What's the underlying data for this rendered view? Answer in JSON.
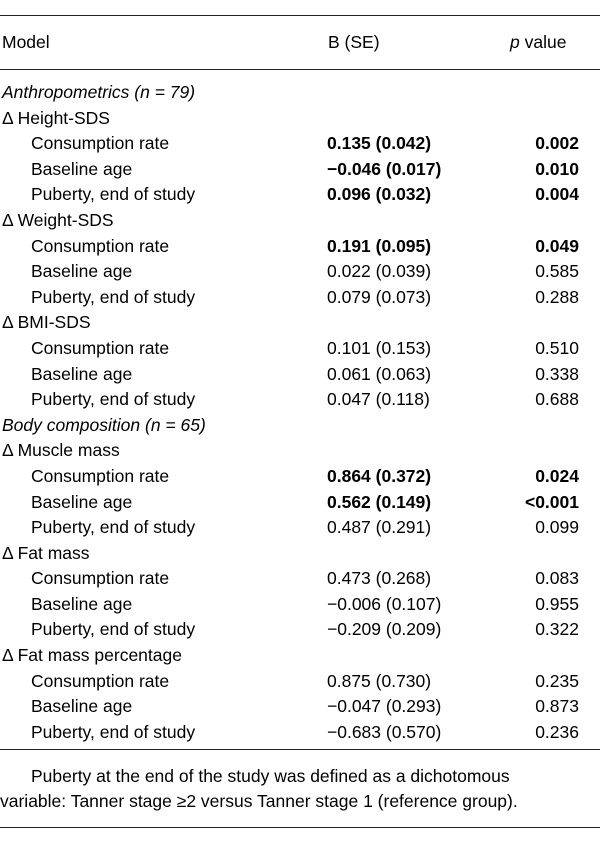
{
  "header": {
    "model": "Model",
    "b_se": "B (SE)",
    "p_italic": "p",
    "p_rest": " value"
  },
  "rows": [
    {
      "kind": "section",
      "label": "Anthropometrics (n = 79)"
    },
    {
      "kind": "group",
      "label": "Δ Height-SDS"
    },
    {
      "kind": "item",
      "label": "Consumption rate",
      "b": "0.135 (0.042)",
      "p": "0.002",
      "bold": true
    },
    {
      "kind": "item",
      "label": "Baseline age",
      "b": "−0.046 (0.017)",
      "p": "0.010",
      "bold": true
    },
    {
      "kind": "item",
      "label": "Puberty, end of study",
      "b": "0.096 (0.032)",
      "p": "0.004",
      "bold": true
    },
    {
      "kind": "group",
      "label": "Δ Weight-SDS"
    },
    {
      "kind": "item",
      "label": "Consumption rate",
      "b": "0.191 (0.095)",
      "p": "0.049",
      "bold": true
    },
    {
      "kind": "item",
      "label": "Baseline age",
      "b": "0.022 (0.039)",
      "p": "0.585",
      "bold": false
    },
    {
      "kind": "item",
      "label": "Puberty, end of study",
      "b": "0.079 (0.073)",
      "p": "0.288",
      "bold": false
    },
    {
      "kind": "group",
      "label": "Δ BMI-SDS"
    },
    {
      "kind": "item",
      "label": "Consumption rate",
      "b": "0.101 (0.153)",
      "p": "0.510",
      "bold": false
    },
    {
      "kind": "item",
      "label": "Baseline age",
      "b": "0.061 (0.063)",
      "p": "0.338",
      "bold": false
    },
    {
      "kind": "item",
      "label": "Puberty, end of study",
      "b": "0.047 (0.118)",
      "p": "0.688",
      "bold": false
    },
    {
      "kind": "section",
      "label": "Body composition (n = 65)"
    },
    {
      "kind": "group",
      "label": "Δ Muscle mass"
    },
    {
      "kind": "item",
      "label": "Consumption rate",
      "b": "0.864 (0.372)",
      "p": "0.024",
      "bold": true
    },
    {
      "kind": "item",
      "label": "Baseline age",
      "b": "0.562 (0.149)",
      "p": "<0.001",
      "bold": true
    },
    {
      "kind": "item",
      "label": "Puberty, end of study",
      "b": "0.487 (0.291)",
      "p": "0.099",
      "bold": false
    },
    {
      "kind": "group",
      "label": "Δ Fat mass"
    },
    {
      "kind": "item",
      "label": "Consumption rate",
      "b": "0.473 (0.268)",
      "p": "0.083",
      "bold": false
    },
    {
      "kind": "item",
      "label": "Baseline age",
      "b": "−0.006 (0.107)",
      "p": "0.955",
      "bold": false
    },
    {
      "kind": "item",
      "label": "Puberty, end of study",
      "b": "−0.209 (0.209)",
      "p": "0.322",
      "bold": false
    },
    {
      "kind": "group",
      "label": "Δ Fat mass percentage"
    },
    {
      "kind": "item",
      "label": "Consumption rate",
      "b": "0.875 (0.730)",
      "p": "0.235",
      "bold": false
    },
    {
      "kind": "item",
      "label": "Baseline age",
      "b": "−0.047 (0.293)",
      "p": "0.873",
      "bold": false
    },
    {
      "kind": "item",
      "label": "Puberty, end of study",
      "b": "−0.683 (0.570)",
      "p": "0.236",
      "bold": false
    }
  ],
  "footnote": {
    "line1": "Puberty at the end of the study was defined as a dichotomous",
    "line2": "variable: Tanner stage ≥2 versus Tanner stage 1 (reference group)."
  }
}
